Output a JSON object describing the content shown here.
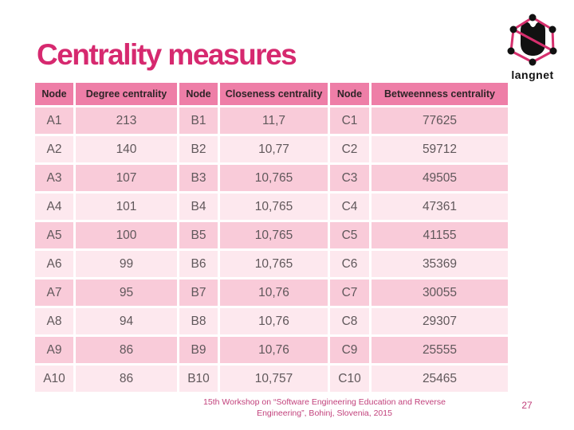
{
  "slide": {
    "title": "Centrality measures",
    "footer": "15th Workshop on “Software Engineering Education and Reverse Engineering”, Bohinj, Slovenia, 2015",
    "page_number": "27"
  },
  "logo": {
    "caption": "langnet",
    "icon": "hexagon-network-icon"
  },
  "table": {
    "headers": [
      "Node",
      "Degree centrality",
      "Node",
      "Closeness centrality",
      "Node",
      "Betweenness centrality"
    ],
    "rows": [
      [
        "A1",
        "213",
        "B1",
        "11,7",
        "C1",
        "77625"
      ],
      [
        "A2",
        "140",
        "B2",
        "10,77",
        "C2",
        "59712"
      ],
      [
        "A3",
        "107",
        "B3",
        "10,765",
        "C3",
        "49505"
      ],
      [
        "A4",
        "101",
        "B4",
        "10,765",
        "C4",
        "47361"
      ],
      [
        "A5",
        "100",
        "B5",
        "10,765",
        "C5",
        "41155"
      ],
      [
        "A6",
        "99",
        "B6",
        "10,765",
        "C6",
        "35369"
      ],
      [
        "A7",
        "95",
        "B7",
        "10,76",
        "C7",
        "30055"
      ],
      [
        "A8",
        "94",
        "B8",
        "10,76",
        "C8",
        "29307"
      ],
      [
        "A9",
        "86",
        "B9",
        "10,76",
        "C9",
        "25555"
      ],
      [
        "A10",
        "86",
        "B10",
        "10,757",
        "C10",
        "25465"
      ]
    ]
  },
  "colors": {
    "title": "#d6296f",
    "header_background": "#ee7ea7",
    "header_text": "#2e2427",
    "row_dark": "#f9cbd9",
    "row_light": "#fde8ee",
    "body_text": "#60585b",
    "footer_text": "#c2427c",
    "logo_edge": "#d62f6d",
    "logo_node": "#111111"
  }
}
